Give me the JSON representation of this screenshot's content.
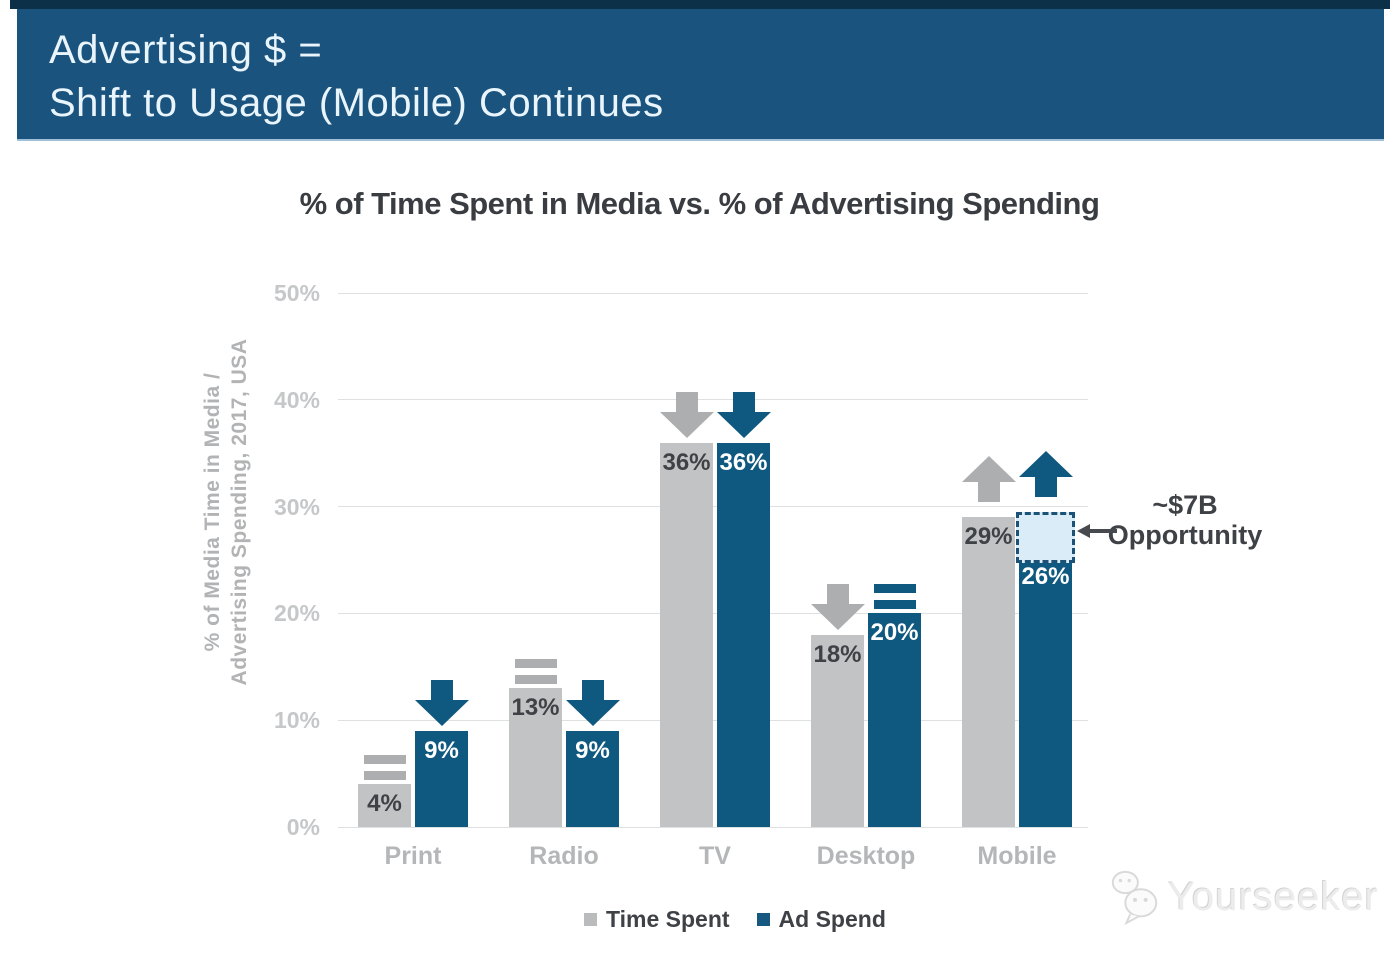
{
  "header": {
    "line1": "Advertising $ =",
    "line2": "Shift to Usage (Mobile) Continues"
  },
  "chart_data": {
    "type": "bar",
    "title": "% of Time Spent in Media vs. % of Advertising Spending",
    "ylabel_line1": "% of Media Time in Media /",
    "ylabel_line2": "Advertising Spending, 2017, USA",
    "categories": [
      "Print",
      "Radio",
      "TV",
      "Desktop",
      "Mobile"
    ],
    "yticks": [
      "0%",
      "10%",
      "20%",
      "30%",
      "40%",
      "50%"
    ],
    "ylim": [
      0,
      50
    ],
    "grid": "horizontal-only",
    "legend_position": "bottom-center",
    "series": [
      {
        "name": "Time Spent",
        "values": [
          4,
          13,
          36,
          18,
          29
        ],
        "labels": [
          "4%",
          "13%",
          "36%",
          "18%",
          "29%"
        ],
        "trends": [
          "equal",
          "equal",
          "down",
          "down",
          "up"
        ]
      },
      {
        "name": "Ad Spend",
        "values": [
          9,
          9,
          36,
          20,
          26
        ],
        "labels": [
          "9%",
          "9%",
          "36%",
          "20%",
          "26%"
        ],
        "trends": [
          "down",
          "down",
          "down",
          "equal",
          "up"
        ]
      }
    ],
    "annotation": {
      "line1": "~$7B",
      "line2": "Opportunity",
      "target_category": "Mobile",
      "target_series": "Ad Spend",
      "box_from_pct": 26,
      "box_to_pct": 29.5
    }
  },
  "colors": {
    "top_strip": "#0D3049",
    "banner_bg": "#19537E",
    "banner_text": "#E9F4FB",
    "time_spent_bar": "#C2C3C5",
    "ad_spend_bar": "#0F587F",
    "time_spent_arrow": "#ACAEB0",
    "ad_spend_arrow": "#0F587F",
    "label_on_gray": "#3E4145",
    "label_on_blue": "#FFFFFF",
    "gridline": "#DFE0E2",
    "tick_text": "#C5C7C9",
    "axis_label_text": "#B1B3B5",
    "category_text": "#B4B6B8",
    "title_text": "#393D41",
    "annotation_text": "#3E4145",
    "annotation_arrow": "#46494E",
    "opportunity_fill": "#D9ECF8",
    "opportunity_border": "#1B5276",
    "legend_text": "#3E4145"
  },
  "watermark": {
    "text": "Yourseeker"
  }
}
